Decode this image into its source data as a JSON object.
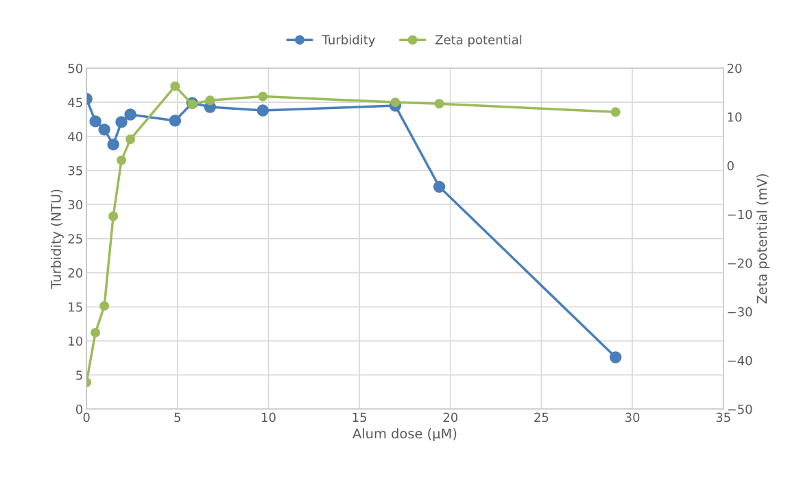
{
  "chart_data": {
    "type": "line",
    "xlabel": "Alum dose (µM)",
    "ylabel": "Turbidity (NTU)",
    "y2label": "Zeta potential (mV)",
    "x": [
      0,
      0.49,
      0.98,
      1.47,
      1.92,
      2.41,
      4.87,
      5.81,
      6.79,
      9.69,
      16.97,
      19.39,
      29.08
    ],
    "series": [
      {
        "name": "Turbidity",
        "color": "#4a7ebb",
        "values": [
          45.5,
          42.2,
          41.0,
          38.8,
          42.1,
          43.2,
          42.3,
          44.9,
          44.3,
          43.8,
          44.5,
          32.6,
          7.6
        ]
      },
      {
        "name": "Zeta potential",
        "color": "#9bbb59",
        "axis": "y2",
        "values": [
          -44.5,
          -34.3,
          -28.8,
          -10.4,
          1.1,
          5.4,
          16.3,
          12.6,
          13.4,
          14.2,
          13.0,
          12.7,
          11.0
        ]
      }
    ],
    "xlim": [
      0,
      35
    ],
    "xticks": [
      0,
      5,
      10,
      15,
      20,
      25,
      30,
      35
    ],
    "ylim": [
      0,
      50
    ],
    "yticks": [
      0,
      5,
      10,
      15,
      20,
      25,
      30,
      35,
      40,
      45,
      50
    ],
    "y2lim": [
      -50,
      20
    ],
    "y2ticks": [
      {
        "value": -50,
        "label": "−50"
      },
      {
        "value": -40,
        "label": "−40"
      },
      {
        "value": -30,
        "label": "−30"
      },
      {
        "value": -20,
        "label": "−20"
      },
      {
        "value": -10,
        "label": "−10"
      },
      0,
      10,
      20
    ],
    "grid": true,
    "legend": "top",
    "marker": "circle",
    "line_style": "solid"
  }
}
